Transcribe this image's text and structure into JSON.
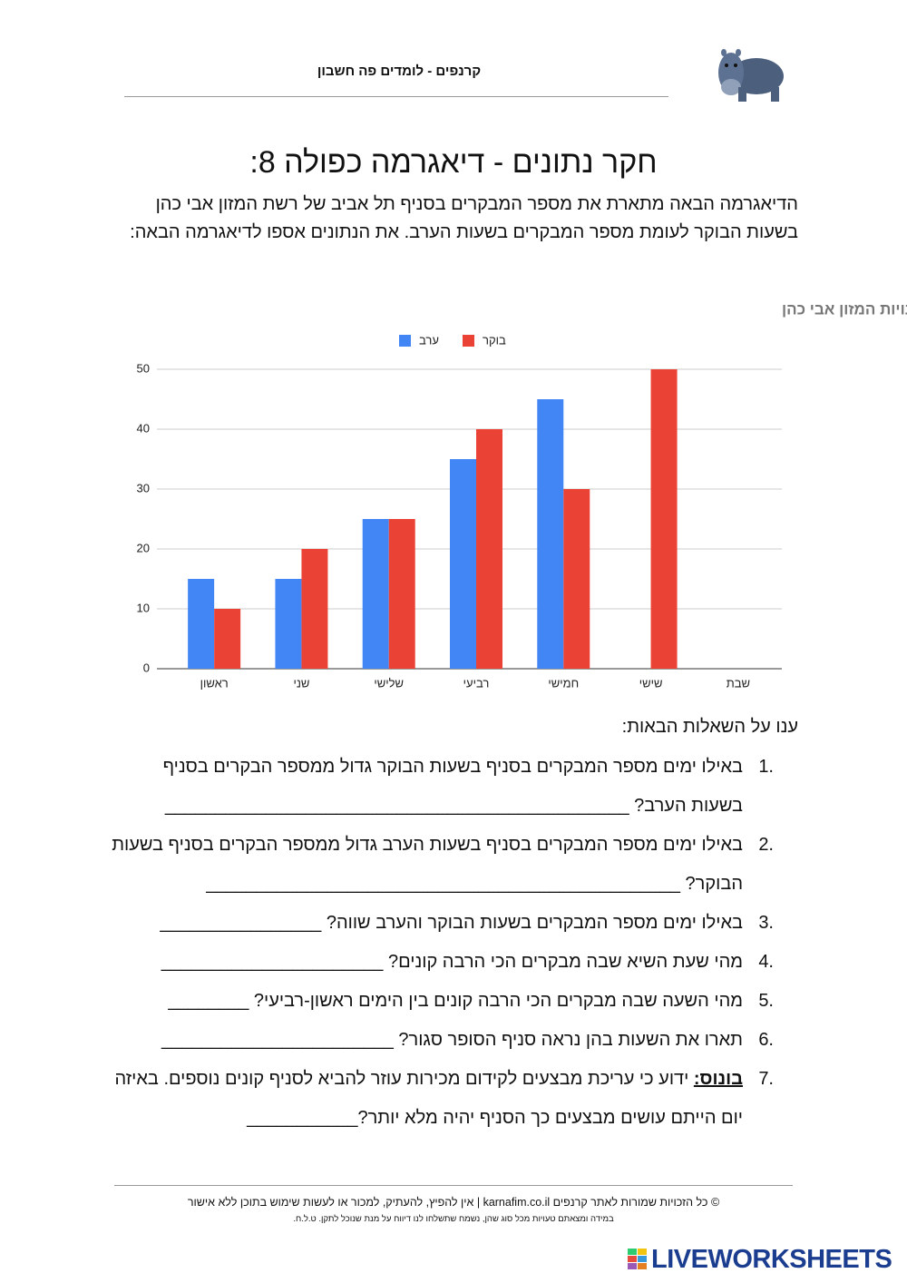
{
  "header": {
    "title": "קרנפים - לומדים פה חשבון"
  },
  "title": "חקר נתונים - דיאגרמה כפולה 8:",
  "intro": "הדיאגרמה הבאה מתארת את מספר המבקרים בסניף תל אביב של רשת המזון אבי כהן בשעות הבוקר לעומת מספר המבקרים בשעות הערב. את הנתונים אספו לדיאגרמה הבאה:",
  "chart_data": {
    "type": "bar",
    "title": "מספר המבקרים בשעות הבוקר והערב בסניף תל אביב של רשת חנויות המזון אבי כהן",
    "categories": [
      "ראשון",
      "שני",
      "שלישי",
      "רביעי",
      "חמישי",
      "שישי",
      "שבת"
    ],
    "series": [
      {
        "name": "ערב",
        "color": "#4285f4",
        "values": [
          15,
          15,
          25,
          35,
          45,
          0,
          0
        ]
      },
      {
        "name": "בוקר",
        "color": "#ea4335",
        "values": [
          10,
          20,
          25,
          40,
          30,
          50,
          0
        ]
      }
    ],
    "ylim": [
      0,
      50
    ],
    "yticks": [
      0,
      10,
      20,
      30,
      40,
      50
    ],
    "grid": true,
    "legend": "top"
  },
  "questions_intro": "ענו על השאלות הבאות:",
  "questions": [
    {
      "number": "1.",
      "text": "באילו ימים מספר המבקרים בסניף בשעות הבוקר גדול ממספר הבקרים בסניף בשעות הערב? ______________________________________________"
    },
    {
      "number": "2.",
      "text": "באילו ימים מספר המבקרים בסניף בשעות הערב גדול ממספר הבקרים בסניף בשעות הבוקר? _______________________________________________"
    },
    {
      "number": "3.",
      "text": "באילו ימים מספר המבקרים בשעות הבוקר והערב שווה? ________________"
    },
    {
      "number": "4.",
      "text": "מהי שעת השיא שבה מבקרים הכי הרבה קונים? ______________________"
    },
    {
      "number": "5.",
      "text": "מהי השעה שבה מבקרים הכי הרבה קונים בין הימים ראשון-רביעי? ________"
    },
    {
      "number": "6.",
      "text": "תארו את השעות בהן נראה סניף הסופר סגור? _______________________"
    },
    {
      "number": "7.",
      "label": "בונוס:",
      "text": "ידוע כי עריכת מבצעים לקידום מכירות עוזר להביא לסניף קונים נוספים. באיזה יום הייתם עושים מבצעים כך הסניף יהיה מלא יותר?___________"
    }
  ],
  "footer": {
    "copyright": "© כל הזכויות שמורות לאתר קרנפים karnafim.co.il | אין להפיץ, להעתיק, למכור או לעשות שימוש בתוכן ללא אישור",
    "note": "במידה ומצאתם טעויות מכל סוג שהן, נשמח שתשלחו לנו דיווח על מנת שנוכל לתקן. ט.ל.ח.",
    "brand": "LIVEWORKSHEETS"
  }
}
